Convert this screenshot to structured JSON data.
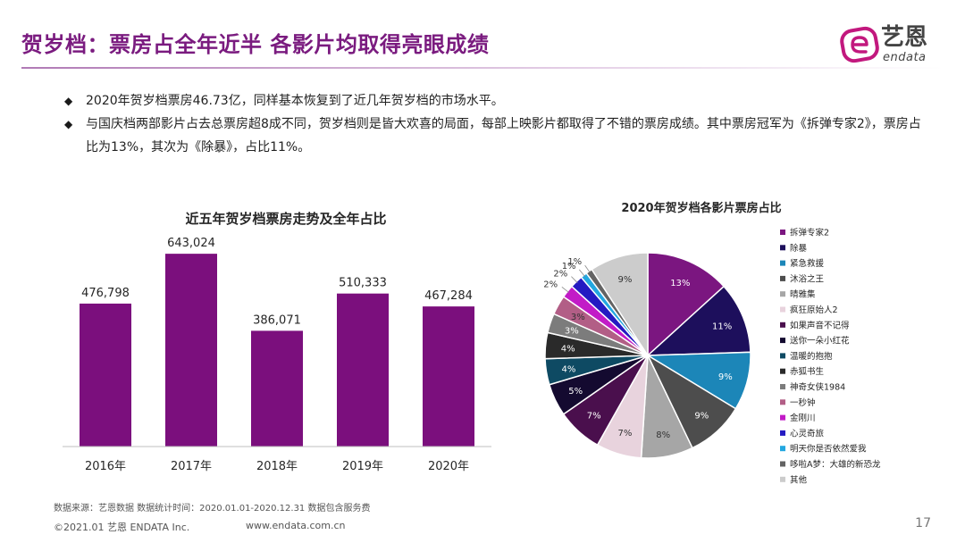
{
  "header": {
    "title": "贺岁档：票房占全年近半 各影片均取得亮眼成绩",
    "logo_cn": "艺恩",
    "logo_en": "endata",
    "accent": "#7a1b7f",
    "logo_color": "#c2187e"
  },
  "bullets": [
    "2020年贺岁档票房46.73亿，同样基本恢复到了近几年贺岁档的市场水平。",
    "与国庆档两部影片占去总票房超8成不同，贺岁档则是皆大欢喜的局面，每部上映影片都取得了不错的票房成绩。其中票房冠军为《拆弹专家2》，票房占比为13%，其次为《除暴》，占比11%。"
  ],
  "chart_data": [
    {
      "type": "bar",
      "title": "近五年贺岁档票房走势及全年占比",
      "categories": [
        "2016年",
        "2017年",
        "2018年",
        "2019年",
        "2020年"
      ],
      "values": [
        476798,
        643024,
        386071,
        510333,
        467284
      ],
      "data_labels": [
        "476,798",
        "643,024",
        "386,071",
        "510,333",
        "467,284"
      ],
      "color": "#7b0f7d",
      "ylim": [
        0,
        700000
      ],
      "grid": false,
      "legend": "none"
    },
    {
      "type": "pie",
      "title": "2020年贺岁档各影片票房占比",
      "legend_position": "right",
      "slices": [
        {
          "name": "拆弹专家2",
          "value": 13,
          "label": "13%",
          "color": "#7b1680"
        },
        {
          "name": "除暴",
          "value": 11,
          "label": "11%",
          "color": "#1d0f5c"
        },
        {
          "name": "紧急救援",
          "value": 9,
          "label": "9%",
          "color": "#1c86b8"
        },
        {
          "name": "沐浴之王",
          "value": 9,
          "label": "9%",
          "color": "#4d4d4d"
        },
        {
          "name": "晴雅集",
          "value": 8,
          "label": "8%",
          "color": "#a6a6a6"
        },
        {
          "name": "疯狂原始人2",
          "value": 7,
          "label": "7%",
          "color": "#e8d3dd"
        },
        {
          "name": "如果声音不记得",
          "value": 7,
          "label": "7%",
          "color": "#4a0f4d"
        },
        {
          "name": "送你一朵小红花",
          "value": 5,
          "label": "5%",
          "color": "#140a30"
        },
        {
          "name": "温暖的抱抱",
          "value": 4,
          "label": "4%",
          "color": "#0e4a63"
        },
        {
          "name": "赤狐书生",
          "value": 4,
          "label": "4%",
          "color": "#2a2a2a"
        },
        {
          "name": "神奇女侠1984",
          "value": 3,
          "label": "3%",
          "color": "#7c7c7c"
        },
        {
          "name": "一秒钟",
          "value": 3,
          "label": "3%",
          "color": "#b25e86"
        },
        {
          "name": "金刚川",
          "value": 2,
          "label": "2%",
          "color": "#c21bc7"
        },
        {
          "name": "心灵奇旅",
          "value": 2,
          "label": "2%",
          "color": "#241ac2"
        },
        {
          "name": "明天你是否依然爱我",
          "value": 1,
          "label": "1%",
          "color": "#23a7e0"
        },
        {
          "name": "哆啦A梦：大雄的新恐龙",
          "value": 1,
          "label": "1%",
          "color": "#636363"
        },
        {
          "name": "其他",
          "value": 9,
          "label": "9%",
          "color": "#cccccc"
        }
      ]
    }
  ],
  "footer": {
    "source": "数据来源：艺恩数据   数据统计时间：2020.01.01-2020.12.31 数据包含服务费",
    "copyright": "©2021.01 艺恩 ENDATA Inc.",
    "url": "www.endata.com.cn",
    "page_number": "17"
  }
}
